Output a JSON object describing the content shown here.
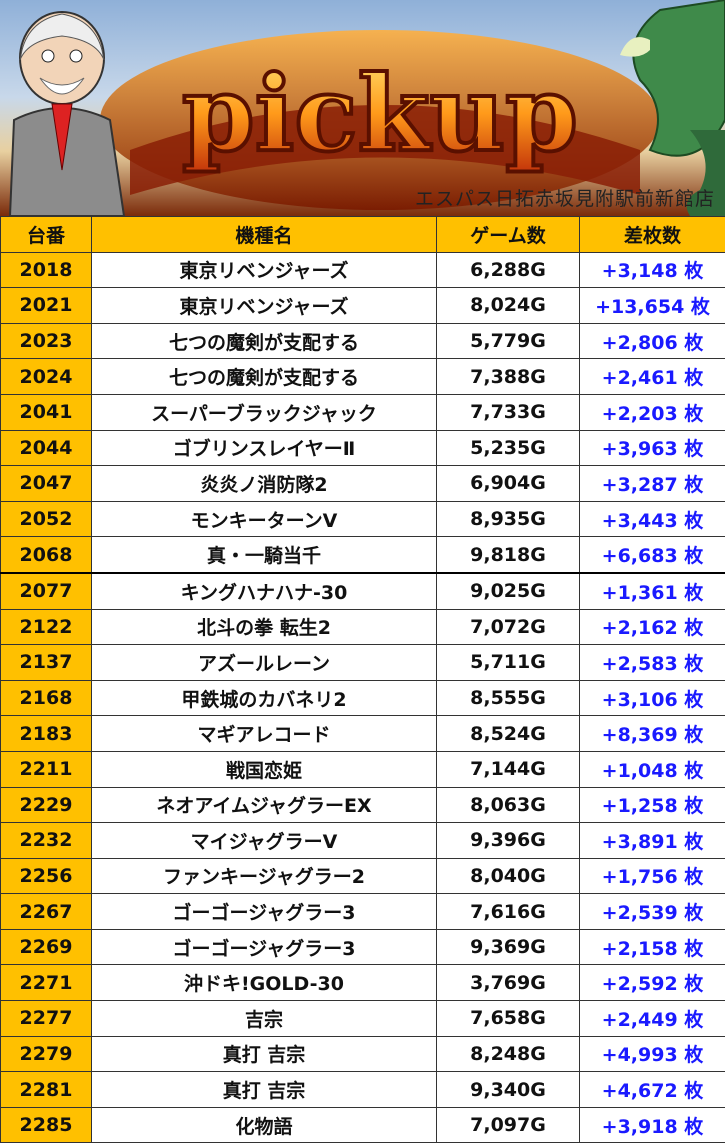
{
  "banner": {
    "logo_text": "pickup",
    "store_name": "エスパス日拓赤坂見附駅前新館店"
  },
  "colors": {
    "header_bg": "#ffc000",
    "diff_text": "#1a1aff"
  },
  "table": {
    "headers": [
      "台番",
      "機種名",
      "ゲーム数",
      "差枚数"
    ],
    "rows": [
      {
        "num": "2018",
        "name": "東京リベンジャーズ",
        "games": "6,288G",
        "diff": "+3,148 枚"
      },
      {
        "num": "2021",
        "name": "東京リベンジャーズ",
        "games": "8,024G",
        "diff": "+13,654 枚"
      },
      {
        "num": "2023",
        "name": "七つの魔剣が支配する",
        "games": "5,779G",
        "diff": "+2,806 枚"
      },
      {
        "num": "2024",
        "name": "七つの魔剣が支配する",
        "games": "7,388G",
        "diff": "+2,461 枚"
      },
      {
        "num": "2041",
        "name": "スーパーブラックジャック",
        "games": "7,733G",
        "diff": "+2,203 枚"
      },
      {
        "num": "2044",
        "name": "ゴブリンスレイヤーⅡ",
        "games": "5,235G",
        "diff": "+3,963 枚"
      },
      {
        "num": "2047",
        "name": "炎炎ノ消防隊2",
        "games": "6,904G",
        "diff": "+3,287 枚"
      },
      {
        "num": "2052",
        "name": "モンキーターンV",
        "games": "8,935G",
        "diff": "+3,443 枚"
      },
      {
        "num": "2068",
        "name": "真・一騎当千",
        "games": "9,818G",
        "diff": "+6,683 枚"
      },
      {
        "num": "2077",
        "name": "キングハナハナ-30",
        "games": "9,025G",
        "diff": "+1,361 枚"
      },
      {
        "num": "2122",
        "name": "北斗の拳 転生2",
        "games": "7,072G",
        "diff": "+2,162 枚"
      },
      {
        "num": "2137",
        "name": "アズールレーン",
        "games": "5,711G",
        "diff": "+2,583 枚"
      },
      {
        "num": "2168",
        "name": "甲鉄城のカバネリ2",
        "games": "8,555G",
        "diff": "+3,106 枚"
      },
      {
        "num": "2183",
        "name": "マギアレコード",
        "games": "8,524G",
        "diff": "+8,369 枚"
      },
      {
        "num": "2211",
        "name": "戦国恋姫",
        "games": "7,144G",
        "diff": "+1,048 枚"
      },
      {
        "num": "2229",
        "name": "ネオアイムジャグラーEX",
        "games": "8,063G",
        "diff": "+1,258 枚"
      },
      {
        "num": "2232",
        "name": "マイジャグラーV",
        "games": "9,396G",
        "diff": "+3,891 枚"
      },
      {
        "num": "2256",
        "name": "ファンキージャグラー2",
        "games": "8,040G",
        "diff": "+1,756 枚"
      },
      {
        "num": "2267",
        "name": "ゴーゴージャグラー3",
        "games": "7,616G",
        "diff": "+2,539 枚"
      },
      {
        "num": "2269",
        "name": "ゴーゴージャグラー3",
        "games": "9,369G",
        "diff": "+2,158 枚"
      },
      {
        "num": "2271",
        "name": "沖ドキ!GOLD-30",
        "games": "3,769G",
        "diff": "+2,592 枚"
      },
      {
        "num": "2277",
        "name": "吉宗",
        "games": "7,658G",
        "diff": "+2,449 枚"
      },
      {
        "num": "2279",
        "name": "真打 吉宗",
        "games": "8,248G",
        "diff": "+4,993 枚"
      },
      {
        "num": "2281",
        "name": "真打 吉宗",
        "games": "9,340G",
        "diff": "+4,672 枚"
      },
      {
        "num": "2285",
        "name": "化物語",
        "games": "7,097G",
        "diff": "+3,918 枚"
      }
    ]
  }
}
